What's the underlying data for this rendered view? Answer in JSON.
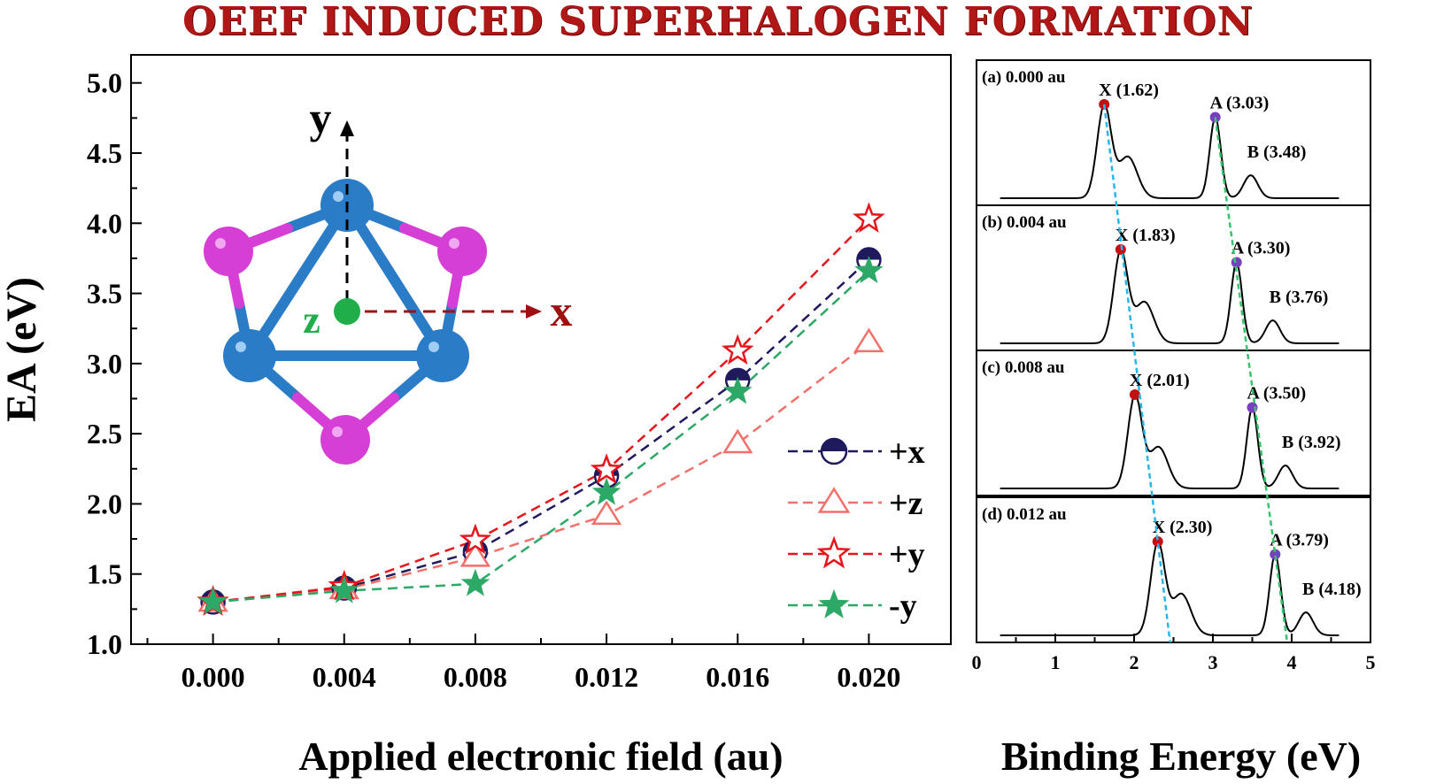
{
  "title": "OEEF INDUCED SUPERHALOGEN FORMATION",
  "chart_data": [
    {
      "type": "line",
      "xlabel": "Applied electronic field (au)",
      "ylabel": "EA (eV)",
      "x": [
        0.0,
        0.004,
        0.008,
        0.012,
        0.016,
        0.02
      ],
      "x_tick_labels": [
        "0.000",
        "0.004",
        "0.008",
        "0.012",
        "0.016",
        "0.020"
      ],
      "xlim": [
        -0.0025,
        0.0225
      ],
      "ylim": [
        1.0,
        5.2
      ],
      "y_ticks": [
        "1.0",
        "1.5",
        "2.0",
        "2.5",
        "3.0",
        "3.5",
        "4.0",
        "4.5",
        "5.0"
      ],
      "legend_position": "bottom-right",
      "series": [
        {
          "name": "+x",
          "color": "#1f1a5e",
          "marker": "half-circle",
          "values": [
            1.3,
            1.4,
            1.66,
            2.2,
            2.88,
            3.74
          ]
        },
        {
          "name": "+z",
          "color": "#f26f6a",
          "marker": "triangle",
          "values": [
            1.3,
            1.39,
            1.62,
            1.92,
            2.43,
            3.15
          ]
        },
        {
          "name": "+y",
          "color": "#e8141b",
          "marker": "star-open",
          "values": [
            1.3,
            1.41,
            1.74,
            2.24,
            3.09,
            4.03
          ]
        },
        {
          "name": "-y",
          "color": "#2ea866",
          "marker": "star",
          "values": [
            1.3,
            1.38,
            1.43,
            2.08,
            2.8,
            3.66
          ]
        }
      ],
      "inset": {
        "axis_labels": {
          "y": "y",
          "x": "x",
          "z": "z"
        },
        "colors": {
          "boron": "#2a7cc7",
          "halogen": "#d63fd6",
          "origin": "#1fae4a",
          "x_axis": "#a01010",
          "y_axis": "#000000"
        }
      }
    },
    {
      "type": "line",
      "xlabel": "Binding Energy (eV)",
      "xlim": [
        0,
        5
      ],
      "x_ticks": [
        "0",
        "1",
        "2",
        "3",
        "4",
        "5"
      ],
      "guide_colors": {
        "X": "#29b6e8",
        "A": "#35c46c"
      },
      "marker_colors": {
        "X": "#c41010",
        "A": "#7a3fbf"
      },
      "panels": [
        {
          "label": "(a) 0.000 au",
          "X": 1.62,
          "A": 3.03,
          "B": 3.48,
          "X_text": "X (1.62)",
          "A_text": "A (3.03)",
          "B_text": "B (3.48)"
        },
        {
          "label": "(b) 0.004 au",
          "X": 1.83,
          "A": 3.3,
          "B": 3.76,
          "X_text": "X (1.83)",
          "A_text": "A (3.30)",
          "B_text": "B (3.76)"
        },
        {
          "label": "(c) 0.008 au",
          "X": 2.01,
          "A": 3.5,
          "B": 3.92,
          "X_text": "X (2.01)",
          "A_text": "A (3.50)",
          "B_text": "B (3.92)"
        },
        {
          "label": "(d) 0.012 au",
          "X": 2.3,
          "A": 3.79,
          "B": 4.18,
          "X_text": "X (2.30)",
          "A_text": "A (3.79)",
          "B_text": "B (4.18)"
        }
      ]
    }
  ]
}
